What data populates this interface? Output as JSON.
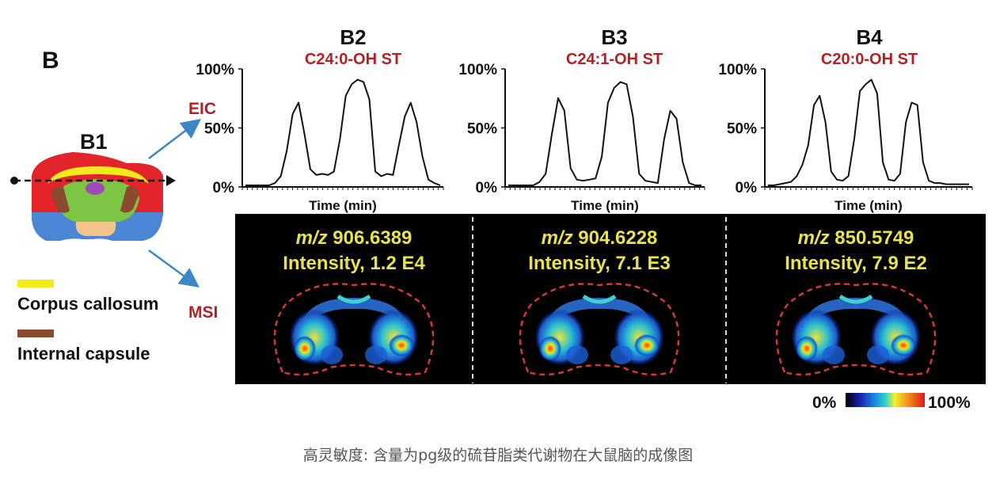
{
  "figure": {
    "panel_letter": "B",
    "b1": {
      "label": "B1",
      "eic_label": "EIC",
      "msi_label": "MSI",
      "legend": [
        {
          "name": "Corpus callosum",
          "color": "#f2ea1c"
        },
        {
          "name": "Internal capsule",
          "color": "#8b4a2b"
        }
      ]
    },
    "panels": [
      {
        "label": "B2",
        "compound": "C24:0-OH ST",
        "time_label": "Time (min)",
        "mz_prefix": "m/z",
        "mz_value": "906.6389",
        "intensity": "Intensity, 1.2 E4",
        "y_ticks": [
          "100%",
          "50%",
          "0%"
        ]
      },
      {
        "label": "B3",
        "compound": "C24:1-OH ST",
        "time_label": "Time (min)",
        "mz_prefix": "m/z",
        "mz_value": "904.6228",
        "intensity": "Intensity, 7.1 E3",
        "y_ticks": [
          "100%",
          "50%",
          "0%"
        ]
      },
      {
        "label": "B4",
        "compound": "C20:0-OH ST",
        "time_label": "Time (min)",
        "mz_prefix": "m/z",
        "mz_value": "850.5749",
        "intensity": "Intensity, 7.9 E2",
        "y_ticks": [
          "100%",
          "50%",
          "0%"
        ]
      }
    ],
    "colorbar": {
      "min_label": "0%",
      "max_label": "100%"
    },
    "colors": {
      "compound_red": "#b52025",
      "msi_yellow": "#e9e24c",
      "arrow_blue": "#3f86c6"
    }
  },
  "chart_data": [
    {
      "type": "line",
      "title": "B2",
      "subtitle": "C24:0-OH ST",
      "xlabel": "Time (min)",
      "ylabel": "",
      "ylim": [
        0,
        100
      ],
      "series": [
        {
          "values": [
            0,
            0,
            0,
            0,
            0,
            2,
            8,
            30,
            62,
            72,
            45,
            14,
            9,
            10,
            9,
            12,
            40,
            78,
            88,
            92,
            90,
            75,
            12,
            8,
            10,
            9,
            35,
            60,
            72,
            55,
            25,
            5,
            2,
            0
          ]
        }
      ]
    },
    {
      "type": "line",
      "title": "B3",
      "subtitle": "C24:1-OH ST",
      "xlabel": "Time (min)",
      "ylabel": "",
      "ylim": [
        0,
        100
      ],
      "series": [
        {
          "values": [
            0,
            0,
            0,
            0,
            0,
            3,
            10,
            45,
            76,
            65,
            15,
            5,
            4,
            5,
            6,
            25,
            72,
            85,
            90,
            88,
            60,
            10,
            4,
            3,
            2,
            40,
            65,
            58,
            20,
            2,
            0,
            0
          ]
        }
      ]
    },
    {
      "type": "line",
      "title": "B4",
      "subtitle": "C20:0-OH ST",
      "xlabel": "Time (min)",
      "ylabel": "",
      "ylim": [
        0,
        100
      ],
      "series": [
        {
          "values": [
            0,
            0,
            1,
            2,
            3,
            8,
            18,
            35,
            70,
            78,
            55,
            12,
            5,
            4,
            8,
            40,
            82,
            88,
            92,
            80,
            20,
            5,
            4,
            10,
            55,
            72,
            70,
            20,
            4,
            2,
            2,
            1,
            1,
            1,
            1,
            1
          ]
        }
      ]
    }
  ]
}
